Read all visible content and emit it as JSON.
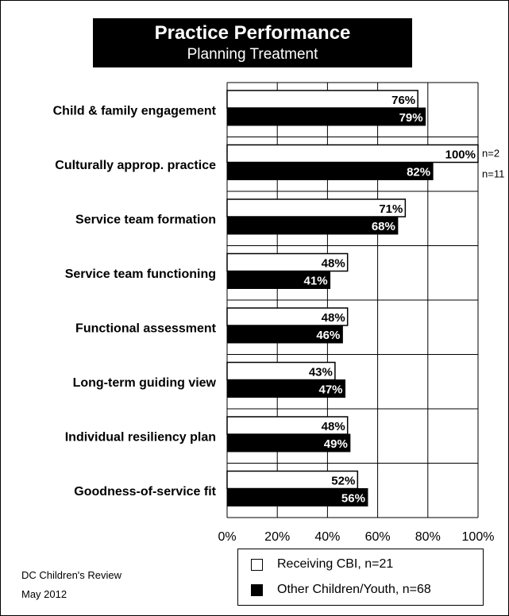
{
  "title": "Practice Performance",
  "subtitle": "Planning Treatment",
  "footer": {
    "org": "DC Children's Review",
    "date": "May 2012"
  },
  "annotations": {
    "n_white": "n=2",
    "n_black": "n=11"
  },
  "legend": [
    {
      "label": "Receiving CBI, n=21",
      "swatch": "white"
    },
    {
      "label": "Other Children/Youth, n=68",
      "swatch": "black"
    }
  ],
  "colors": {
    "series1_fill": "#ffffff",
    "series2_fill": "#000000",
    "border": "#000000"
  },
  "chart_data": {
    "type": "bar",
    "orientation": "horizontal",
    "title": "Practice Performance",
    "subtitle": "Planning Treatment",
    "categories": [
      "Child & family engagement",
      "Culturally approp. practice",
      "Service team formation",
      "Service team functioning",
      "Functional assessment",
      "Long-term guiding view",
      "Individual resiliency plan",
      "Goodness-of-service fit"
    ],
    "series": [
      {
        "name": "Receiving CBI, n=21",
        "values": [
          76,
          100,
          71,
          48,
          48,
          43,
          48,
          52
        ]
      },
      {
        "name": "Other Children/Youth, n=68",
        "values": [
          79,
          82,
          68,
          41,
          46,
          47,
          49,
          56
        ]
      }
    ],
    "value_labels": [
      [
        "76%",
        "100%",
        "71%",
        "48%",
        "48%",
        "43%",
        "48%",
        "52%"
      ],
      [
        "79%",
        "82%",
        "68%",
        "41%",
        "46%",
        "47%",
        "49%",
        "56%"
      ]
    ],
    "xlim": [
      0,
      100
    ],
    "xticks": [
      "0%",
      "20%",
      "40%",
      "60%",
      "80%",
      "100%"
    ],
    "xticks_values": [
      0,
      20,
      40,
      60,
      80,
      100
    ],
    "grid": true,
    "legend_position": "bottom-right"
  }
}
